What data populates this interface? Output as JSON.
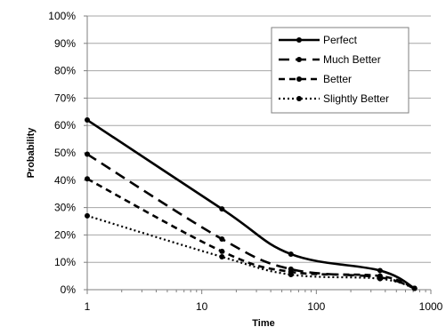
{
  "chart_data": {
    "type": "line",
    "title": "",
    "xlabel": "Time",
    "ylabel": "Probability",
    "xscale": "log",
    "xlim": [
      1,
      1000
    ],
    "ylim": [
      0,
      100
    ],
    "x_ticks": [
      "1",
      "10",
      "100",
      "1000"
    ],
    "y_ticks": [
      "0%",
      "10%",
      "20%",
      "30%",
      "40%",
      "50%",
      "60%",
      "70%",
      "80%",
      "90%",
      "100%"
    ],
    "grid": "horizontal",
    "legend_position": "top-right",
    "series": [
      {
        "name": "Perfect",
        "style": "solid",
        "points": [
          [
            1,
            62
          ],
          [
            15,
            29.5
          ],
          [
            60,
            13
          ],
          [
            360,
            7
          ],
          [
            720,
            0.5
          ]
        ]
      },
      {
        "name": "Much Better",
        "style": "long-dash",
        "points": [
          [
            1,
            49.5
          ],
          [
            15,
            18.5
          ],
          [
            60,
            7.5
          ],
          [
            360,
            4.5
          ],
          [
            720,
            0.5
          ]
        ]
      },
      {
        "name": "Better",
        "style": "dash",
        "points": [
          [
            1,
            40.5
          ],
          [
            15,
            14
          ],
          [
            60,
            6.5
          ],
          [
            360,
            5
          ],
          [
            720,
            0.5
          ]
        ]
      },
      {
        "name": "Slightly Better",
        "style": "dot",
        "points": [
          [
            1,
            27
          ],
          [
            15,
            12
          ],
          [
            60,
            5.5
          ],
          [
            360,
            4
          ],
          [
            720,
            0.5
          ]
        ]
      }
    ]
  }
}
